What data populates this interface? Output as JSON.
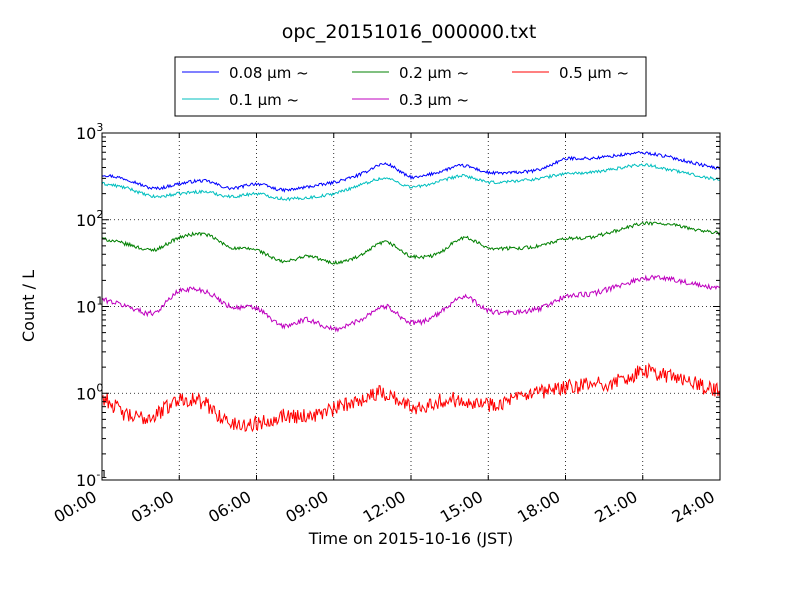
{
  "chart_data": {
    "type": "line",
    "title": "opc_20151016_000000.txt",
    "xlabel": "Time on 2015-10-16 (JST)",
    "ylabel": "Count / L",
    "yscale": "log",
    "xlim": [
      "00:00",
      "24:00"
    ],
    "ylim": [
      0.1,
      1000
    ],
    "grid": true,
    "legend_placement": "top-center, above axes, 3 columns",
    "x_tick_labels": [
      "00:00",
      "03:00",
      "06:00",
      "09:00",
      "12:00",
      "15:00",
      "18:00",
      "21:00",
      "24:00"
    ],
    "y_tick_labels": [
      {
        "base": "10",
        "exp": "-1"
      },
      {
        "base": "10",
        "exp": "0"
      },
      {
        "base": "10",
        "exp": "1"
      },
      {
        "base": "10",
        "exp": "2"
      },
      {
        "base": "10",
        "exp": "3"
      }
    ],
    "x": [
      "00:00",
      "01:00",
      "02:00",
      "03:00",
      "04:00",
      "05:00",
      "06:00",
      "07:00",
      "08:00",
      "09:00",
      "10:00",
      "11:00",
      "12:00",
      "13:00",
      "14:00",
      "15:00",
      "16:00",
      "17:00",
      "18:00",
      "19:00",
      "20:00",
      "21:00",
      "22:00",
      "23:00",
      "24:00"
    ],
    "series": [
      {
        "name": "0.08 μm ~",
        "color": "#0000ff",
        "values": [
          330,
          290,
          230,
          260,
          280,
          230,
          260,
          220,
          240,
          270,
          330,
          440,
          310,
          350,
          420,
          350,
          350,
          380,
          500,
          510,
          550,
          590,
          530,
          450,
          390
        ]
      },
      {
        "name": "0.1 μm ~",
        "color": "#00bfbf",
        "values": [
          260,
          230,
          185,
          200,
          210,
          185,
          200,
          175,
          180,
          200,
          250,
          300,
          240,
          270,
          320,
          270,
          280,
          300,
          340,
          350,
          390,
          430,
          380,
          330,
          290
        ]
      },
      {
        "name": "0.2 μm ~",
        "color": "#008000",
        "values": [
          60,
          52,
          45,
          62,
          68,
          48,
          45,
          33,
          38,
          32,
          38,
          55,
          38,
          40,
          62,
          48,
          47,
          50,
          60,
          63,
          75,
          90,
          88,
          78,
          70
        ]
      },
      {
        "name": "0.3 μm ~",
        "color": "#bf00bf",
        "values": [
          12,
          10,
          8.5,
          15,
          15,
          10,
          9.5,
          6,
          7,
          5.5,
          7,
          10,
          6.5,
          8,
          13,
          9,
          8.5,
          9.5,
          13,
          14,
          17,
          21,
          21,
          18,
          16
        ]
      },
      {
        "name": "0.5 μm ~",
        "color": "#ff0000",
        "values": [
          0.9,
          0.55,
          0.55,
          0.85,
          0.75,
          0.45,
          0.45,
          0.55,
          0.55,
          0.65,
          0.85,
          1.0,
          0.7,
          0.8,
          0.85,
          0.75,
          0.85,
          1.0,
          1.15,
          1.25,
          1.35,
          1.75,
          1.6,
          1.3,
          1.05
        ]
      }
    ]
  }
}
